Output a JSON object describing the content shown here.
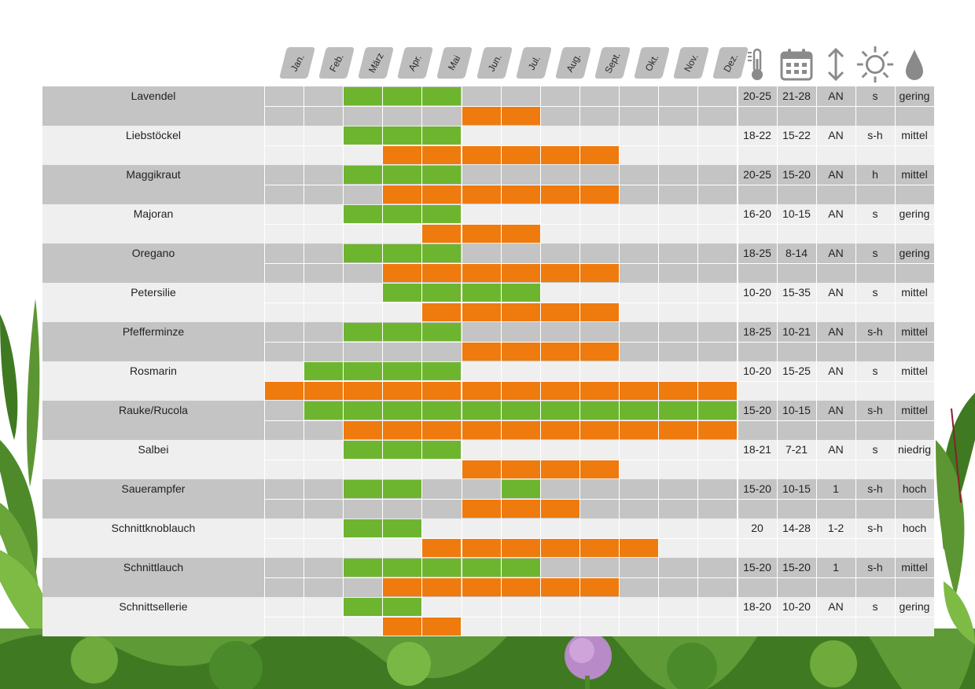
{
  "months": [
    "Jan.",
    "Feb.",
    "März",
    "Apr.",
    "Mai",
    "Jun.",
    "Jul.",
    "Aug.",
    "Sept.",
    "Okt.",
    "Nov.",
    "Dez."
  ],
  "icons": [
    "thermometer-icon",
    "calendar-icon",
    "up-down-arrow-icon",
    "sun-icon",
    "water-drop-icon"
  ],
  "colors": {
    "green": "#6eb52f",
    "orange": "#ef7a0e",
    "dark_band": "#c4c4c4",
    "light_band": "#efefef",
    "header_tab": "#bdbdbd",
    "icon": "#8a8a8a"
  },
  "herbs": [
    {
      "name": "Lavendel",
      "green": [
        3,
        6
      ],
      "orange": [
        6,
        8
      ],
      "values": [
        "20-25",
        "21-28",
        "AN",
        "s",
        "gering"
      ]
    },
    {
      "name": "Liebstöckel",
      "green": [
        3,
        6
      ],
      "orange": [
        4,
        10
      ],
      "values": [
        "18-22",
        "15-22",
        "AN",
        "s-h",
        "mittel"
      ]
    },
    {
      "name": "Maggikraut",
      "green": [
        3,
        6
      ],
      "orange": [
        4,
        10
      ],
      "values": [
        "20-25",
        "15-20",
        "AN",
        "h",
        "mittel"
      ]
    },
    {
      "name": "Majoran",
      "green": [
        3,
        6
      ],
      "orange": [
        5,
        8
      ],
      "values": [
        "16-20",
        "10-15",
        "AN",
        "s",
        "gering"
      ]
    },
    {
      "name": "Oregano",
      "green": [
        3,
        6
      ],
      "orange": [
        4,
        10
      ],
      "values": [
        "18-25",
        "8-14",
        "AN",
        "s",
        "gering"
      ]
    },
    {
      "name": "Petersilie",
      "green": [
        4,
        8
      ],
      "orange": [
        5,
        10
      ],
      "values": [
        "10-20",
        "15-35",
        "AN",
        "s",
        "mittel"
      ]
    },
    {
      "name": "Pfefferminze",
      "green": [
        3,
        6
      ],
      "orange": [
        6,
        10
      ],
      "values": [
        "18-25",
        "10-21",
        "AN",
        "s-h",
        "mittel"
      ]
    },
    {
      "name": "Rosmarin",
      "green": [
        2,
        6
      ],
      "orange": [
        1,
        13
      ],
      "values": [
        "10-20",
        "15-25",
        "AN",
        "s",
        "mittel"
      ]
    },
    {
      "name": "Rauke/Rucola",
      "green": [
        2,
        13
      ],
      "orange": [
        3,
        13
      ],
      "values": [
        "15-20",
        "10-15",
        "AN",
        "s-h",
        "mittel"
      ]
    },
    {
      "name": "Salbei",
      "green": [
        3,
        6
      ],
      "orange": [
        6,
        10
      ],
      "values": [
        "18-21",
        "7-21",
        "AN",
        "s",
        "niedrig"
      ]
    },
    {
      "name": "Sauerampfer",
      "green": [
        3,
        5,
        7,
        8
      ],
      "orange": [
        6,
        9
      ],
      "values": [
        "15-20",
        "10-15",
        "1",
        "s-h",
        "hoch"
      ]
    },
    {
      "name": "Schnittknoblauch",
      "green": [
        3,
        5
      ],
      "orange": [
        5,
        11
      ],
      "values": [
        "20",
        "14-28",
        "1-2",
        "s-h",
        "hoch"
      ]
    },
    {
      "name": "Schnittlauch",
      "green": [
        3,
        8
      ],
      "orange": [
        4,
        10
      ],
      "values": [
        "15-20",
        "15-20",
        "1",
        "s-h",
        "mittel"
      ]
    },
    {
      "name": "Schnittsellerie",
      "green": [
        3,
        5
      ],
      "orange": [
        4,
        6
      ],
      "values": [
        "18-20",
        "10-20",
        "AN",
        "s",
        "gering"
      ]
    }
  ]
}
